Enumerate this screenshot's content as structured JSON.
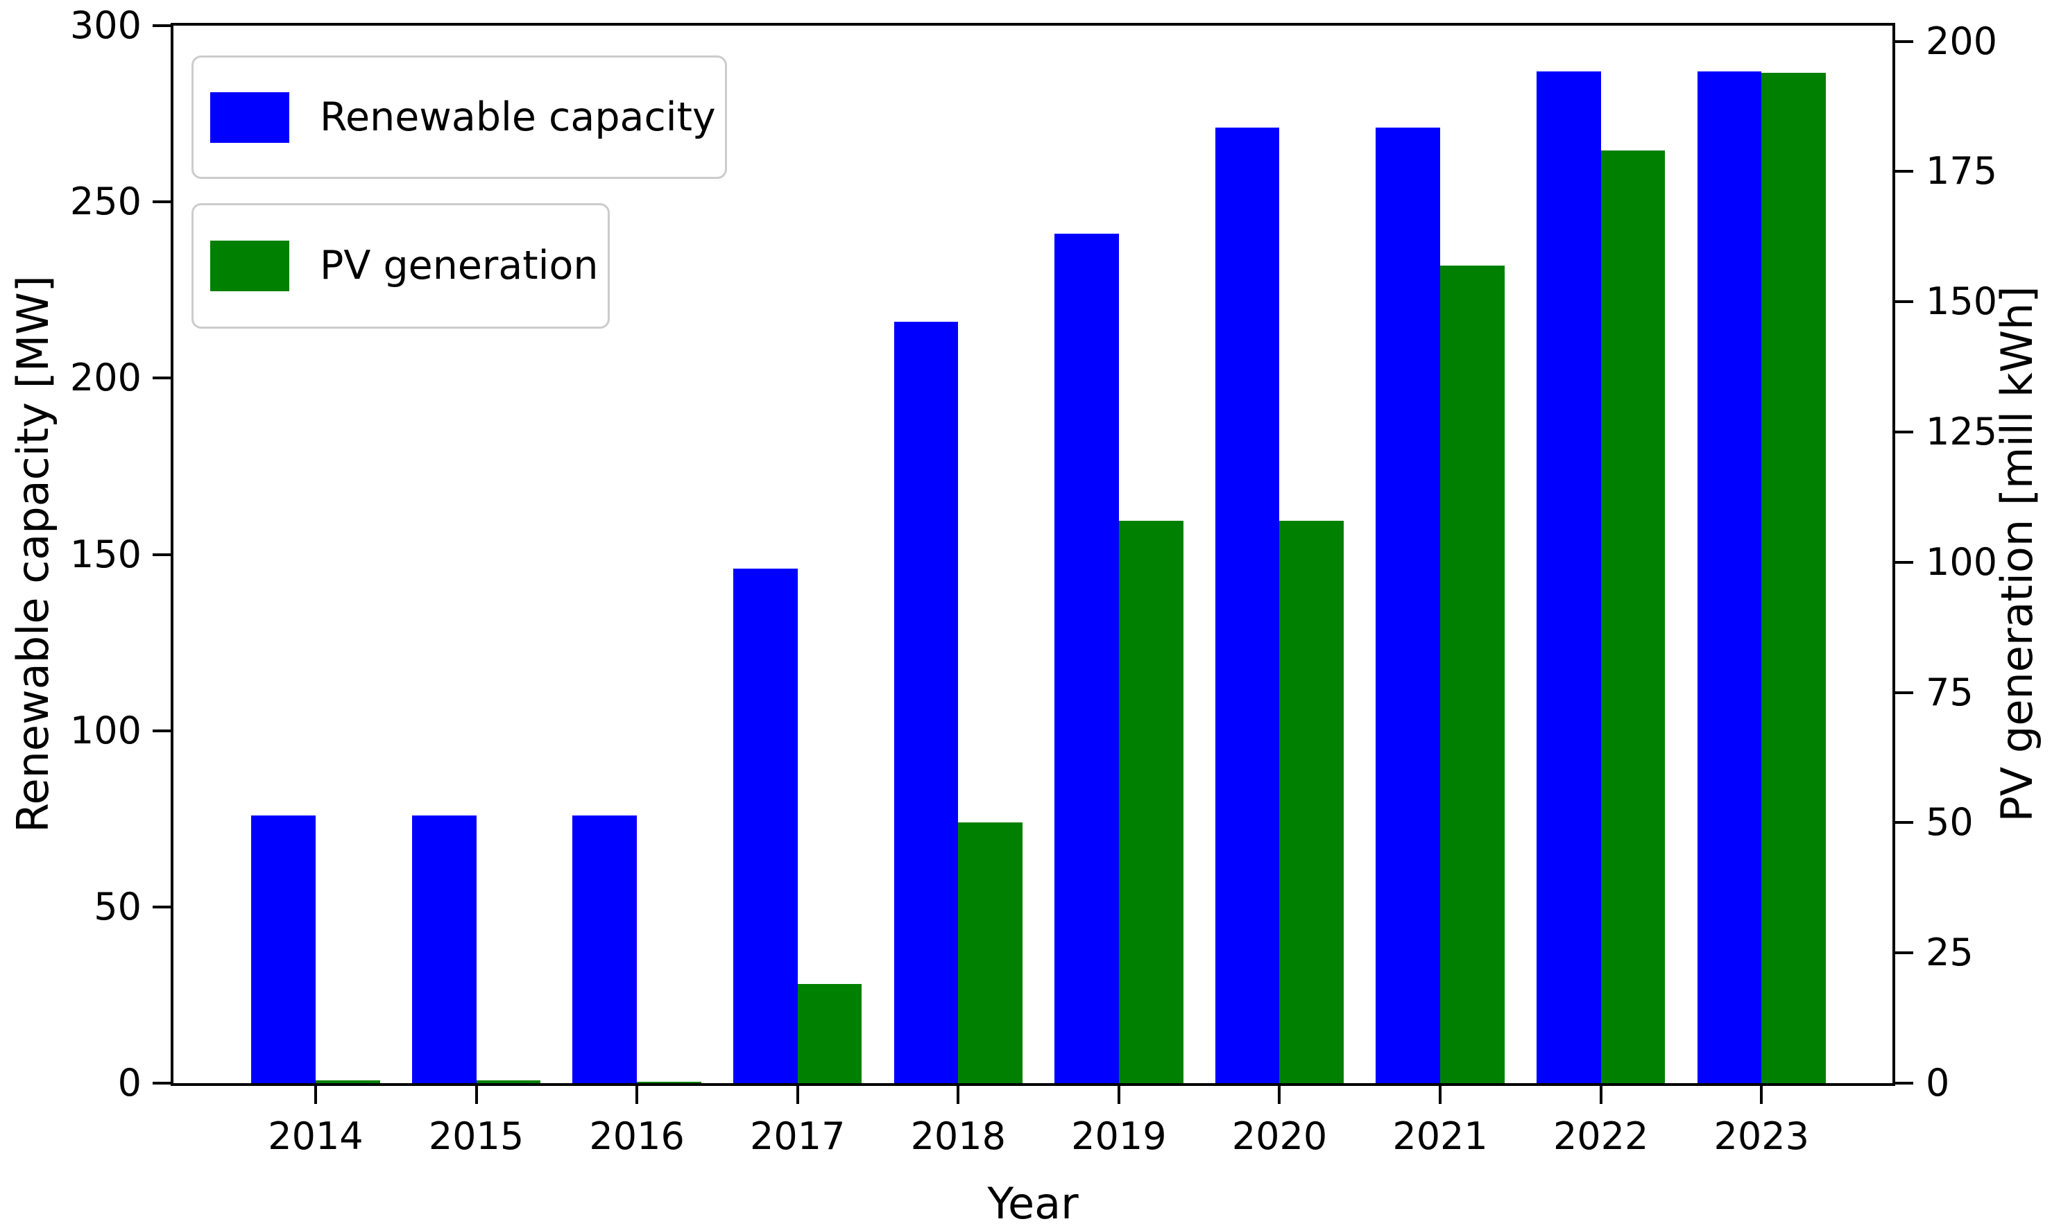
{
  "chart_data": {
    "type": "bar",
    "title": "",
    "xlabel": "Year",
    "ylabel_left": "Renewable capacity [MW]",
    "ylabel_right": "PV generation [mill kWh]",
    "categories": [
      2014,
      2015,
      2016,
      2017,
      2018,
      2019,
      2020,
      2021,
      2022,
      2023
    ],
    "series": [
      {
        "name": "Renewable capacity",
        "axis": "left",
        "unit": "MW",
        "color": "#0000ff",
        "values": [
          76,
          76,
          76,
          146,
          216,
          241,
          271,
          271,
          287,
          287
        ]
      },
      {
        "name": "PV generation",
        "axis": "right",
        "unit": "mill kWh",
        "color": "#008000",
        "values": [
          0.5,
          0.5,
          0.3,
          19,
          50,
          108,
          108,
          157,
          179,
          194
        ]
      }
    ],
    "ylim_left": [
      0,
      300
    ],
    "ylim_right": [
      0,
      200
    ],
    "yticks_left": [
      0,
      50,
      100,
      150,
      200,
      250,
      300
    ],
    "yticks_right": [
      0,
      25,
      50,
      75,
      100,
      125,
      150,
      175,
      200
    ],
    "legend_position": "upper left",
    "grid": false,
    "background_color": "#ffffff",
    "axis_color": "#000000",
    "legend_border_color": "#cccccc"
  }
}
